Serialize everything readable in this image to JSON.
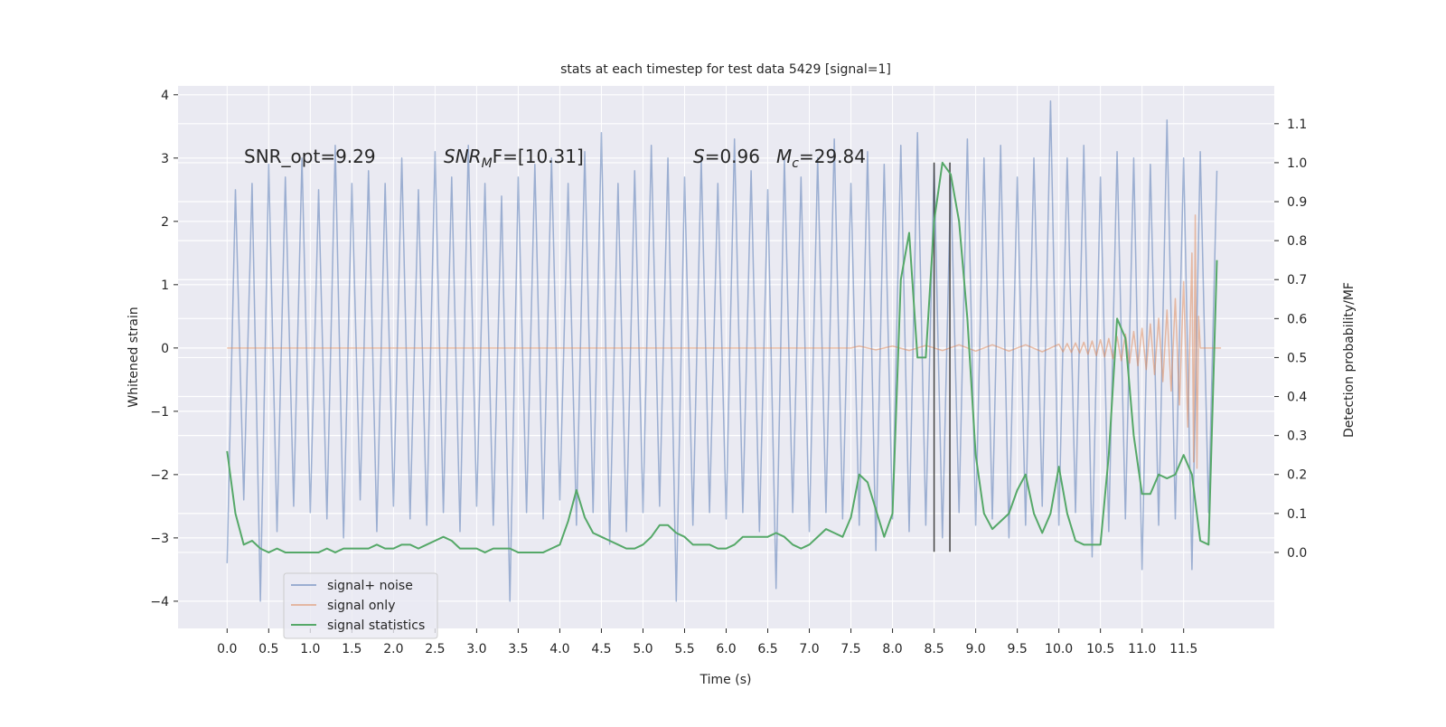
{
  "chart_data": {
    "type": "line",
    "title": "stats at each timestep for test data 5429 [signal=1]",
    "xlabel": "Time (s)",
    "ylabel": "Whitened strain",
    "y2label": "Detection probability/MF",
    "annotations": [
      "SNR_opt=9.29",
      [
        "SNR",
        "M",
        "F=[10.31]"
      ],
      [
        "S",
        "=0.96"
      ],
      [
        "M",
        "c",
        "=29.84"
      ]
    ],
    "background": "#eaeaf2",
    "grid": true,
    "legend": "lower left",
    "xlim": [
      -0.59,
      12.59
    ],
    "ylim": [
      -4.43,
      4.14
    ],
    "y2lim": [
      -0.195,
      1.197
    ],
    "xticks": [
      {
        "value": 0,
        "label": "0.0"
      },
      0.5,
      {
        "value": 1,
        "label": "1.0"
      },
      1.5,
      {
        "value": 2,
        "label": "2.0"
      },
      2.5,
      {
        "value": 3,
        "label": "3.0"
      },
      3.5,
      {
        "value": 4,
        "label": "4.0"
      },
      4.5,
      {
        "value": 5,
        "label": "5.0"
      },
      5.5,
      {
        "value": 6,
        "label": "6.0"
      },
      6.5,
      {
        "value": 7,
        "label": "7.0"
      },
      7.5,
      {
        "value": 8,
        "label": "8.0"
      },
      8.5,
      {
        "value": 9,
        "label": "9.0"
      },
      9.5,
      {
        "value": 10,
        "label": "10.0"
      },
      10.5,
      {
        "value": 11,
        "label": "11.0"
      },
      11.5
    ],
    "yticks": [
      {
        "value": -4,
        "label": "−4"
      },
      {
        "value": -3,
        "label": "−3"
      },
      {
        "value": -2,
        "label": "−2"
      },
      {
        "value": -1,
        "label": "−1"
      },
      0,
      1,
      2,
      3,
      4
    ],
    "y2ticks": [
      {
        "value": 0,
        "label": "0.0"
      },
      0.1,
      0.2,
      0.3,
      0.4,
      0.5,
      0.6,
      0.7,
      0.8,
      0.9,
      {
        "value": 1,
        "label": "1.0"
      },
      1.1
    ],
    "x": [
      0,
      0.1,
      0.2,
      0.3,
      0.4,
      0.5,
      0.6,
      0.7,
      0.8,
      0.9,
      1,
      1.1,
      1.2,
      1.3,
      1.4,
      1.5,
      1.6,
      1.7,
      1.8,
      1.9,
      2,
      2.1,
      2.2,
      2.3,
      2.4,
      2.5,
      2.6,
      2.7,
      2.8,
      2.9,
      3,
      3.1,
      3.2,
      3.3,
      3.4,
      3.5,
      3.6,
      3.7,
      3.8,
      3.9,
      4,
      4.1,
      4.2,
      4.3,
      4.4,
      4.5,
      4.6,
      4.7,
      4.8,
      4.9,
      5,
      5.1,
      5.2,
      5.3,
      5.4,
      5.5,
      5.6,
      5.7,
      5.8,
      5.9,
      6,
      6.1,
      6.2,
      6.3,
      6.4,
      6.5,
      6.6,
      6.7,
      6.8,
      6.9,
      7,
      7.1,
      7.2,
      7.3,
      7.4,
      7.5,
      7.6,
      7.7,
      7.8,
      7.9,
      8,
      8.1,
      8.2,
      8.3,
      8.4,
      8.5,
      8.6,
      8.7,
      8.8,
      8.9,
      9,
      9.1,
      9.2,
      9.3,
      9.4,
      9.5,
      9.6,
      9.7,
      9.8,
      9.9,
      10,
      10.1,
      10.2,
      10.3,
      10.4,
      10.5,
      10.6,
      10.7,
      10.8,
      10.9,
      11,
      11.1,
      11.2,
      11.3,
      11.4,
      11.5,
      11.6,
      11.7,
      11.8,
      11.9
    ],
    "series": [
      {
        "name": "signal+ noise",
        "color": "#4c72b0",
        "alpha": 0.5,
        "values": [
          -3.4,
          2.5,
          -2.4,
          2.6,
          -4.0,
          2.9,
          -2.9,
          2.7,
          -2.5,
          3.0,
          -2.6,
          2.5,
          -2.7,
          3.2,
          -3.0,
          2.6,
          -2.4,
          2.8,
          -2.9,
          2.6,
          -2.5,
          3.0,
          -2.7,
          2.5,
          -2.8,
          3.1,
          -2.6,
          2.7,
          -2.9,
          3.2,
          -2.5,
          2.6,
          -2.8,
          2.4,
          -4.0,
          2.7,
          -2.6,
          2.9,
          -2.7,
          3.0,
          -2.4,
          2.6,
          -2.8,
          3.1,
          -2.6,
          3.4,
          -3.1,
          2.6,
          -2.9,
          2.8,
          -2.6,
          3.2,
          -2.5,
          3.0,
          -4.0,
          2.7,
          -2.8,
          3.0,
          -2.6,
          2.6,
          -2.7,
          3.3,
          -2.6,
          2.8,
          -2.9,
          2.5,
          -3.8,
          3.0,
          -2.6,
          2.7,
          -2.9,
          3.0,
          -2.6,
          3.3,
          -2.7,
          2.6,
          -2.8,
          3.1,
          -3.2,
          2.9,
          -2.7,
          3.2,
          -2.9,
          3.4,
          -2.8,
          2.9,
          -3.0,
          2.7,
          -2.6,
          3.3,
          -2.8,
          3.0,
          -2.7,
          3.2,
          -3.0,
          2.7,
          -2.8,
          3.0,
          -2.5,
          3.9,
          -2.8,
          3.0,
          -2.6,
          3.2,
          -3.3,
          2.7,
          -2.9,
          3.1,
          -2.7,
          3.0,
          -3.5,
          2.9,
          -2.8,
          3.6,
          -2.7,
          3.0,
          -3.5,
          3.1,
          -2.6,
          2.8
        ]
      },
      {
        "name": "signal only",
        "color": "#dd8452",
        "alpha": 0.5,
        "x": [
          0,
          7.5,
          7.6,
          7.8,
          8.0,
          8.2,
          8.4,
          8.6,
          8.8,
          9.0,
          9.2,
          9.4,
          9.6,
          9.8,
          10.0,
          10.05,
          10.1,
          10.15,
          10.2,
          10.25,
          10.3,
          10.35,
          10.4,
          10.45,
          10.5,
          10.55,
          10.6,
          10.65,
          10.7,
          10.75,
          10.8,
          10.85,
          10.9,
          10.95,
          11.0,
          11.05,
          11.1,
          11.15,
          11.2,
          11.25,
          11.3,
          11.35,
          11.4,
          11.45,
          11.5,
          11.55,
          11.6,
          11.62,
          11.64,
          11.66,
          11.68,
          11.7,
          11.95
        ],
        "values": [
          0,
          0,
          0.03,
          -0.03,
          0.03,
          -0.04,
          0.04,
          -0.04,
          0.05,
          -0.05,
          0.05,
          -0.05,
          0.05,
          -0.06,
          0.06,
          -0.06,
          0.07,
          -0.07,
          0.08,
          -0.08,
          0.09,
          -0.1,
          0.11,
          -0.12,
          0.13,
          -0.14,
          0.15,
          -0.17,
          0.18,
          -0.2,
          0.22,
          -0.24,
          0.26,
          -0.28,
          0.31,
          -0.34,
          0.38,
          -0.42,
          0.47,
          -0.53,
          0.6,
          -0.68,
          0.78,
          -0.9,
          1.05,
          -1.25,
          1.5,
          -1.8,
          2.1,
          -1.9,
          0.5,
          0,
          0
        ]
      },
      {
        "name": "signal statistics",
        "color": "#55a868",
        "alpha": 1,
        "axis": "y2",
        "values": [
          0.26,
          0.1,
          0.02,
          0.03,
          0.01,
          0,
          0.01,
          0,
          0,
          0,
          0,
          0,
          0.01,
          0,
          0.01,
          0.01,
          0.01,
          0.01,
          0.02,
          0.01,
          0.01,
          0.02,
          0.02,
          0.01,
          0.02,
          0.03,
          0.04,
          0.03,
          0.01,
          0.01,
          0.01,
          0,
          0.01,
          0.01,
          0.01,
          0,
          0,
          0,
          0,
          0.01,
          0.02,
          0.08,
          0.16,
          0.09,
          0.05,
          0.04,
          0.03,
          0.02,
          0.01,
          0.01,
          0.02,
          0.04,
          0.07,
          0.07,
          0.05,
          0.04,
          0.02,
          0.02,
          0.02,
          0.01,
          0.01,
          0.02,
          0.04,
          0.04,
          0.04,
          0.04,
          0.05,
          0.04,
          0.02,
          0.01,
          0.02,
          0.04,
          0.06,
          0.05,
          0.04,
          0.09,
          0.2,
          0.18,
          0.11,
          0.04,
          0.1,
          0.7,
          0.82,
          0.5,
          0.5,
          0.85,
          1.0,
          0.97,
          0.85,
          0.6,
          0.25,
          0.1,
          0.06,
          0.08,
          0.1,
          0.16,
          0.2,
          0.1,
          0.05,
          0.1,
          0.22,
          0.1,
          0.03,
          0.02,
          0.02,
          0.02,
          0.25,
          0.6,
          0.55,
          0.3,
          0.15,
          0.15,
          0.2,
          0.19,
          0.2,
          0.25,
          0.2,
          0.03,
          0.02,
          0.75
        ]
      }
    ],
    "vlines": {
      "x": [
        8.5,
        8.69
      ],
      "ymin": -3.22,
      "ymax": 2.93,
      "color": "#444444"
    }
  }
}
